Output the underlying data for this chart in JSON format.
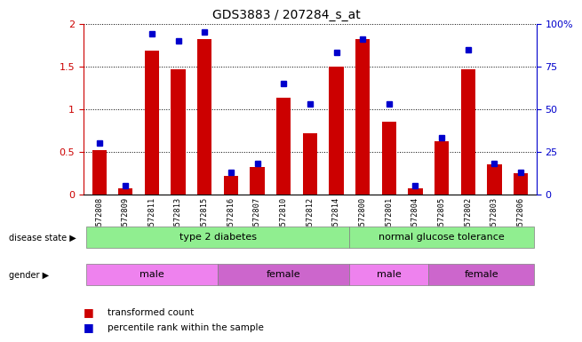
{
  "title": "GDS3883 / 207284_s_at",
  "samples": [
    "GSM572808",
    "GSM572809",
    "GSM572811",
    "GSM572813",
    "GSM572815",
    "GSM572816",
    "GSM572807",
    "GSM572810",
    "GSM572812",
    "GSM572814",
    "GSM572800",
    "GSM572801",
    "GSM572804",
    "GSM572805",
    "GSM572802",
    "GSM572803",
    "GSM572806"
  ],
  "bar_values": [
    0.52,
    0.07,
    1.68,
    1.47,
    1.82,
    0.22,
    0.32,
    1.13,
    0.72,
    1.5,
    1.82,
    0.85,
    0.07,
    0.62,
    1.47,
    0.35,
    0.25
  ],
  "pct_values": [
    30,
    5,
    94,
    90,
    95,
    13,
    18,
    65,
    53,
    83,
    91,
    53,
    5,
    33,
    85,
    18,
    13
  ],
  "ylim_left": [
    0,
    2
  ],
  "ylim_right": [
    0,
    100
  ],
  "yticks_left": [
    0,
    0.5,
    1.0,
    1.5,
    2.0
  ],
  "yticks_right": [
    0,
    25,
    50,
    75,
    100
  ],
  "yticklabels_left": [
    "0",
    "0.5",
    "1",
    "1.5",
    "2"
  ],
  "yticklabels_right": [
    "0",
    "25",
    "50",
    "75",
    "100%"
  ],
  "bar_color": "#cc0000",
  "pct_color": "#0000cc",
  "background_color": "#ffffff",
  "disease_state_groups": [
    {
      "label": "type 2 diabetes",
      "start": 0,
      "end": 10
    },
    {
      "label": "normal glucose tolerance",
      "start": 10,
      "end": 17
    }
  ],
  "disease_color": "#90ee90",
  "gender_groups": [
    {
      "label": "male",
      "start": 0,
      "end": 5
    },
    {
      "label": "female",
      "start": 5,
      "end": 10
    },
    {
      "label": "male",
      "start": 10,
      "end": 13
    },
    {
      "label": "female",
      "start": 13,
      "end": 17
    }
  ],
  "gender_color_male": "#ee82ee",
  "gender_color_female": "#cc66cc",
  "n_samples": 17
}
